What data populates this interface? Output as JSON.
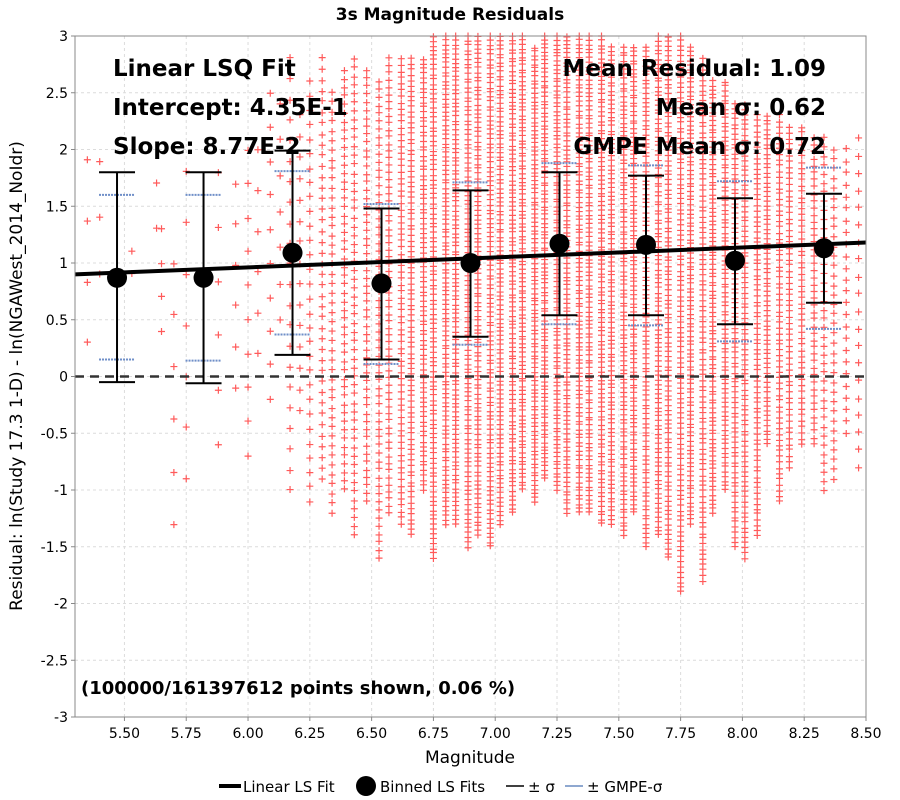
{
  "chart_data": {
    "type": "scatter",
    "title": "3s Magnitude Residuals",
    "xlabel": "Magnitude",
    "ylabel": "Residual: ln(Study 17.3 1-D) - ln(NGAWest_2014_NoIdr)",
    "xlim": [
      5.3,
      8.5
    ],
    "ylim": [
      -3,
      3
    ],
    "x_ticks": [
      "5.50",
      "5.75",
      "6.00",
      "6.25",
      "6.50",
      "6.75",
      "7.00",
      "7.25",
      "7.50",
      "7.75",
      "8.00",
      "8.25",
      "8.50"
    ],
    "y_ticks": [
      "3",
      "2.5",
      "2",
      "1.5",
      "1",
      "0.5",
      "0",
      "-0.5",
      "-1",
      "-1.5",
      "-2",
      "-2.5",
      "-3"
    ],
    "grid": true,
    "annotations": {
      "fit_title": "Linear LSQ Fit",
      "intercept": "Intercept: 4.35E-1",
      "slope": "Slope: 8.77E-2",
      "mean_residual": "Mean Residual: 1.09",
      "mean_sigma": "Mean σ: 0.62",
      "gmpe_mean_sigma": "GMPE Mean σ: 0.72",
      "points_shown": "(100000/161397612 points shown, 0.06 %)"
    },
    "fit_line": {
      "intercept": 0.435,
      "slope": 0.0877
    },
    "binned": [
      {
        "x": 5.47,
        "mean": 0.87,
        "lo": -0.05,
        "hi": 1.8,
        "gmpe_lo": 0.15,
        "gmpe_hi": 1.6
      },
      {
        "x": 5.82,
        "mean": 0.87,
        "lo": -0.06,
        "hi": 1.8,
        "gmpe_lo": 0.14,
        "gmpe_hi": 1.6
      },
      {
        "x": 6.18,
        "mean": 1.09,
        "lo": 0.19,
        "hi": 1.99,
        "gmpe_lo": 0.37,
        "gmpe_hi": 1.81
      },
      {
        "x": 6.54,
        "mean": 0.82,
        "lo": 0.15,
        "hi": 1.48,
        "gmpe_lo": 0.11,
        "gmpe_hi": 1.52
      },
      {
        "x": 6.9,
        "mean": 1.0,
        "lo": 0.35,
        "hi": 1.64,
        "gmpe_lo": 0.28,
        "gmpe_hi": 1.71
      },
      {
        "x": 7.26,
        "mean": 1.17,
        "lo": 0.54,
        "hi": 1.8,
        "gmpe_lo": 0.46,
        "gmpe_hi": 1.88
      },
      {
        "x": 7.61,
        "mean": 1.16,
        "lo": 0.54,
        "hi": 1.77,
        "gmpe_lo": 0.45,
        "gmpe_hi": 1.86
      },
      {
        "x": 7.97,
        "mean": 1.02,
        "lo": 0.46,
        "hi": 1.57,
        "gmpe_lo": 0.31,
        "gmpe_hi": 1.72
      },
      {
        "x": 8.33,
        "mean": 1.13,
        "lo": 0.65,
        "hi": 1.61,
        "gmpe_lo": 0.42,
        "gmpe_hi": 1.84
      }
    ],
    "scatter_columns": [
      {
        "x": 5.35,
        "lo": 0.3,
        "hi": 1.9,
        "n": 4
      },
      {
        "x": 5.4,
        "lo": 0.9,
        "hi": 1.9,
        "n": 3
      },
      {
        "x": 5.53,
        "lo": 0.9,
        "hi": 1.1,
        "n": 2
      },
      {
        "x": 5.63,
        "lo": 1.3,
        "hi": 1.7,
        "n": 2
      },
      {
        "x": 5.65,
        "lo": 0.4,
        "hi": 1.3,
        "n": 4
      },
      {
        "x": 5.7,
        "lo": -1.3,
        "hi": 1.0,
        "n": 6
      },
      {
        "x": 5.75,
        "lo": -0.9,
        "hi": 1.8,
        "n": 7
      },
      {
        "x": 5.88,
        "lo": -0.6,
        "hi": 1.8,
        "n": 6
      },
      {
        "x": 5.95,
        "lo": -0.1,
        "hi": 1.7,
        "n": 6
      },
      {
        "x": 6.0,
        "lo": -0.7,
        "hi": 2.0,
        "n": 10
      },
      {
        "x": 6.04,
        "lo": 0.2,
        "hi": 2.0,
        "n": 6
      },
      {
        "x": 6.09,
        "lo": -0.2,
        "hi": 2.5,
        "n": 10
      },
      {
        "x": 6.13,
        "lo": 0.5,
        "hi": 2.4,
        "n": 7
      },
      {
        "x": 6.17,
        "lo": -1.0,
        "hi": 2.8,
        "n": 22
      },
      {
        "x": 6.21,
        "lo": -0.3,
        "hi": 2.3,
        "n": 15
      },
      {
        "x": 6.25,
        "lo": -1.1,
        "hi": 2.6,
        "n": 30
      },
      {
        "x": 6.3,
        "lo": -0.9,
        "hi": 2.8,
        "n": 40
      },
      {
        "x": 6.34,
        "lo": -1.2,
        "hi": 2.5,
        "n": 45
      },
      {
        "x": 6.39,
        "lo": -1.0,
        "hi": 2.7,
        "n": 50
      },
      {
        "x": 6.43,
        "lo": -1.4,
        "hi": 2.8,
        "n": 55
      },
      {
        "x": 6.48,
        "lo": -1.1,
        "hi": 2.7,
        "n": 55
      },
      {
        "x": 6.53,
        "lo": -1.6,
        "hi": 2.6,
        "n": 60
      },
      {
        "x": 6.57,
        "lo": -1.2,
        "hi": 2.8,
        "n": 65
      },
      {
        "x": 6.62,
        "lo": -1.3,
        "hi": 2.8,
        "n": 75
      },
      {
        "x": 6.66,
        "lo": -1.4,
        "hi": 2.8,
        "n": 90
      },
      {
        "x": 6.71,
        "lo": -1.0,
        "hi": 2.8,
        "n": 90
      },
      {
        "x": 6.75,
        "lo": -1.6,
        "hi": 3.0,
        "n": 110
      },
      {
        "x": 6.8,
        "lo": -1.3,
        "hi": 3.0,
        "n": 110
      },
      {
        "x": 6.84,
        "lo": -1.3,
        "hi": 3.0,
        "n": 110
      },
      {
        "x": 6.89,
        "lo": -1.5,
        "hi": 3.0,
        "n": 110
      },
      {
        "x": 6.93,
        "lo": -1.4,
        "hi": 3.0,
        "n": 110
      },
      {
        "x": 6.98,
        "lo": -1.5,
        "hi": 3.0,
        "n": 110
      },
      {
        "x": 7.02,
        "lo": -1.3,
        "hi": 3.0,
        "n": 110
      },
      {
        "x": 7.07,
        "lo": -1.2,
        "hi": 3.0,
        "n": 110
      },
      {
        "x": 7.11,
        "lo": -1.0,
        "hi": 3.0,
        "n": 110
      },
      {
        "x": 7.16,
        "lo": -1.1,
        "hi": 2.9,
        "n": 110
      },
      {
        "x": 7.2,
        "lo": -0.9,
        "hi": 3.0,
        "n": 110
      },
      {
        "x": 7.25,
        "lo": -1.0,
        "hi": 3.0,
        "n": 110
      },
      {
        "x": 7.29,
        "lo": -1.2,
        "hi": 3.0,
        "n": 110
      },
      {
        "x": 7.34,
        "lo": -1.2,
        "hi": 3.0,
        "n": 110
      },
      {
        "x": 7.38,
        "lo": -1.2,
        "hi": 3.0,
        "n": 110
      },
      {
        "x": 7.43,
        "lo": -1.3,
        "hi": 3.0,
        "n": 110
      },
      {
        "x": 7.47,
        "lo": -1.3,
        "hi": 2.9,
        "n": 110
      },
      {
        "x": 7.52,
        "lo": -1.4,
        "hi": 2.9,
        "n": 110
      },
      {
        "x": 7.56,
        "lo": -1.2,
        "hi": 2.9,
        "n": 110
      },
      {
        "x": 7.61,
        "lo": -1.5,
        "hi": 2.9,
        "n": 110
      },
      {
        "x": 7.66,
        "lo": -1.4,
        "hi": 3.0,
        "n": 110
      },
      {
        "x": 7.7,
        "lo": -1.6,
        "hi": 3.0,
        "n": 110
      },
      {
        "x": 7.75,
        "lo": -1.9,
        "hi": 3.0,
        "n": 110
      },
      {
        "x": 7.79,
        "lo": -1.3,
        "hi": 2.9,
        "n": 110
      },
      {
        "x": 7.84,
        "lo": -1.8,
        "hi": 2.8,
        "n": 100
      },
      {
        "x": 7.88,
        "lo": -1.2,
        "hi": 2.6,
        "n": 100
      },
      {
        "x": 7.93,
        "lo": -1.0,
        "hi": 2.6,
        "n": 90
      },
      {
        "x": 7.97,
        "lo": -1.5,
        "hi": 2.4,
        "n": 90
      },
      {
        "x": 8.01,
        "lo": -1.6,
        "hi": 2.4,
        "n": 90
      },
      {
        "x": 8.06,
        "lo": -1.4,
        "hi": 2.3,
        "n": 80
      },
      {
        "x": 8.1,
        "lo": -0.6,
        "hi": 2.3,
        "n": 70
      },
      {
        "x": 8.15,
        "lo": -1.1,
        "hi": 2.3,
        "n": 70
      },
      {
        "x": 8.19,
        "lo": -0.8,
        "hi": 2.2,
        "n": 60
      },
      {
        "x": 8.24,
        "lo": -0.6,
        "hi": 2.2,
        "n": 55
      },
      {
        "x": 8.29,
        "lo": -0.6,
        "hi": 2.1,
        "n": 45
      },
      {
        "x": 8.33,
        "lo": -1.0,
        "hi": 2.1,
        "n": 40
      },
      {
        "x": 8.37,
        "lo": -0.9,
        "hi": 2.0,
        "n": 35
      },
      {
        "x": 8.42,
        "lo": -0.5,
        "hi": 2.0,
        "n": 25
      },
      {
        "x": 8.47,
        "lo": -0.8,
        "hi": 2.1,
        "n": 20
      }
    ],
    "legend": {
      "placement": "bottom",
      "items": [
        "Linear LS Fit",
        "Binned LS Fits",
        "± σ",
        "± GMPE-σ"
      ]
    },
    "colors": {
      "scatter": "#ff5a5a",
      "fit": "#000000",
      "binned": "#000000",
      "sigma": "#000000",
      "gmpe_sigma": "#6f8fc8",
      "grid": "#dcdcdc",
      "zero_line": "#333333"
    }
  }
}
